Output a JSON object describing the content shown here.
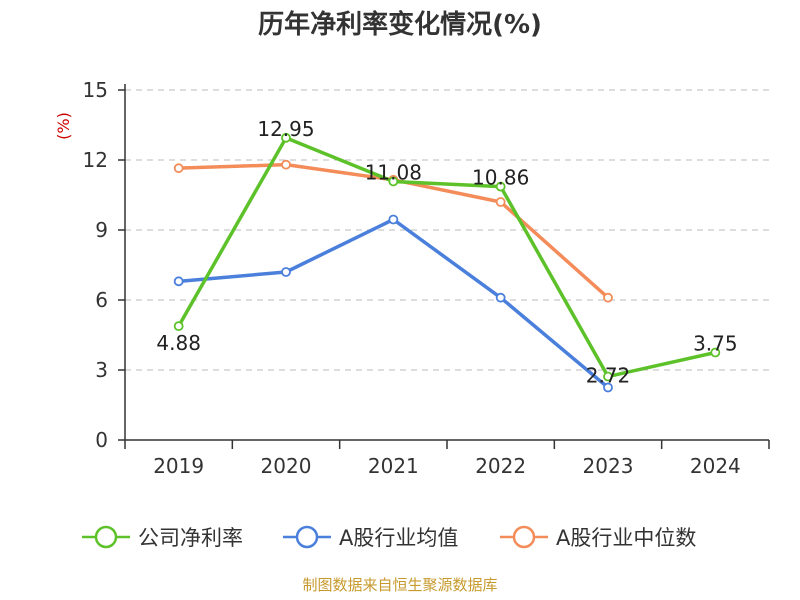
{
  "chart_data": {
    "type": "line",
    "title": "历年净利率变化情况(%)",
    "ylabel": "(%)",
    "xlabel": "",
    "categories": [
      "2019",
      "2020",
      "2021",
      "2022",
      "2023",
      "2024"
    ],
    "ylim": [
      0,
      15
    ],
    "yticks": [
      0,
      3,
      6,
      9,
      12,
      15
    ],
    "ytick_labels": [
      "0",
      "3",
      "6",
      "9",
      "12",
      "15"
    ],
    "grid": "horizontal dashed",
    "legend_position": "bottom",
    "series": [
      {
        "name": "公司净利率",
        "color": "#5dc229",
        "values": [
          4.88,
          12.95,
          11.08,
          10.86,
          2.72,
          3.75
        ],
        "labels": [
          "4.88",
          "12.95",
          "11.08",
          "10.86",
          "2.72",
          "3.75"
        ]
      },
      {
        "name": "A股行业均值",
        "color": "#4a7fdc",
        "values": [
          6.8,
          7.2,
          9.45,
          6.1,
          2.25,
          null
        ],
        "labels": []
      },
      {
        "name": "A股行业中位数",
        "color": "#f48c5a",
        "values": [
          11.65,
          11.8,
          11.15,
          10.2,
          6.1,
          null
        ],
        "labels": []
      }
    ]
  },
  "colors": {
    "ylabel": "#cc0000",
    "source": "#c79a2e",
    "grid": "#bbbbbb",
    "axis": "#333333"
  },
  "source_text": "制图数据来自恒生聚源数据库"
}
